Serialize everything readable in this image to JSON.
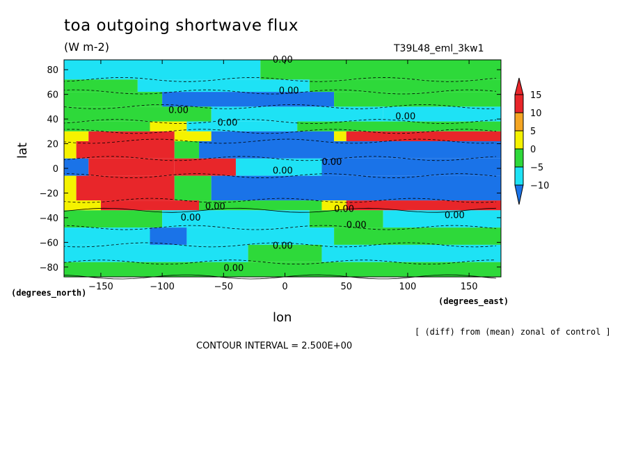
{
  "chart_data": {
    "type": "heatmap",
    "title": "toa outgoing shortwave flux",
    "units": "(W m-2)",
    "run_id": "T39L48_eml_3kw1",
    "xlabel": "lon",
    "ylabel": "lat",
    "x_units": "(degrees_east)",
    "y_units": "(degrees_north)",
    "xlim": [
      -180,
      176
    ],
    "ylim": [
      -88,
      88
    ],
    "x_ticks": [
      -150,
      -100,
      -50,
      0,
      50,
      100,
      150
    ],
    "x_tick_labels": [
      "−150",
      "−100",
      "−50",
      "0",
      "50",
      "100",
      "150"
    ],
    "y_ticks": [
      80,
      60,
      40,
      20,
      0,
      -20,
      -40,
      -60,
      -80
    ],
    "y_tick_labels": [
      "80",
      "60",
      "40",
      "20",
      "0",
      "−20",
      "−40",
      "−60",
      "−80"
    ],
    "colorbar": {
      "levels": [
        15,
        10,
        5,
        0,
        -5,
        -10
      ],
      "level_labels": [
        "15",
        "10",
        "5",
        "0",
        "−5",
        "−10"
      ],
      "colors": [
        "#e8262a",
        "#f5a623",
        "#f5f200",
        "#2ed93a",
        "#1ee2f5",
        "#1a73e8"
      ]
    },
    "contour_labels": [
      "0.00",
      "0.00",
      "0.00",
      "0.00",
      "0.00",
      "0.00",
      "0.00",
      "0.00",
      "0.00",
      "0.00",
      "0.00",
      "0.00",
      "0.00",
      "0.00"
    ],
    "contour_interval": "CONTOUR INTERVAL = 2.500E+00",
    "note": "[ (diff) from (mean) zonal of control ]",
    "bands": [
      {
        "lat_top": 88,
        "lat_bottom": 72,
        "segments": [
          {
            "x0": -180,
            "x1": -20,
            "v": -2.5
          },
          {
            "x0": -20,
            "x1": 176,
            "v": 2.5
          }
        ]
      },
      {
        "lat_top": 72,
        "lat_bottom": 62,
        "segments": [
          {
            "x0": -180,
            "x1": -120,
            "v": 2.5
          },
          {
            "x0": -120,
            "x1": 20,
            "v": -2.5
          },
          {
            "x0": 20,
            "x1": 176,
            "v": 2.5
          }
        ]
      },
      {
        "lat_top": 62,
        "lat_bottom": 50,
        "segments": [
          {
            "x0": -180,
            "x1": -100,
            "v": 2.5
          },
          {
            "x0": -100,
            "x1": 40,
            "v": -7.5
          },
          {
            "x0": 40,
            "x1": 176,
            "v": 2.5
          }
        ]
      },
      {
        "lat_top": 50,
        "lat_bottom": 38,
        "segments": [
          {
            "x0": -180,
            "x1": -60,
            "v": 2.5
          },
          {
            "x0": -60,
            "x1": 80,
            "v": -2.5
          },
          {
            "x0": 80,
            "x1": 176,
            "v": -2.5
          }
        ]
      },
      {
        "lat_top": 38,
        "lat_bottom": 30,
        "segments": [
          {
            "x0": -180,
            "x1": -110,
            "v": 2.5
          },
          {
            "x0": -110,
            "x1": -80,
            "v": 7.5
          },
          {
            "x0": -80,
            "x1": 10,
            "v": -2.5
          },
          {
            "x0": 10,
            "x1": 176,
            "v": 2.5
          }
        ]
      },
      {
        "lat_top": 30,
        "lat_bottom": 22,
        "segments": [
          {
            "x0": -180,
            "x1": -160,
            "v": 7.5
          },
          {
            "x0": -160,
            "x1": -90,
            "v": 12.5
          },
          {
            "x0": -90,
            "x1": -60,
            "v": 7.5
          },
          {
            "x0": -60,
            "x1": 40,
            "v": -7.5
          },
          {
            "x0": 40,
            "x1": 50,
            "v": 7.5
          },
          {
            "x0": 50,
            "x1": 176,
            "v": 12.5
          }
        ]
      },
      {
        "lat_top": 22,
        "lat_bottom": 8,
        "segments": [
          {
            "x0": -180,
            "x1": -170,
            "v": 7.5
          },
          {
            "x0": -170,
            "x1": -90,
            "v": 15
          },
          {
            "x0": -90,
            "x1": -70,
            "v": 2.5
          },
          {
            "x0": -70,
            "x1": 176,
            "v": -12.5
          }
        ]
      },
      {
        "lat_top": 8,
        "lat_bottom": -6,
        "segments": [
          {
            "x0": -180,
            "x1": -160,
            "v": -12.5
          },
          {
            "x0": -160,
            "x1": -90,
            "v": 15
          },
          {
            "x0": -90,
            "x1": -40,
            "v": 12.5
          },
          {
            "x0": -40,
            "x1": 30,
            "v": -2.5
          },
          {
            "x0": 30,
            "x1": 176,
            "v": -7.5
          }
        ]
      },
      {
        "lat_top": -6,
        "lat_bottom": -26,
        "segments": [
          {
            "x0": -180,
            "x1": -170,
            "v": 7.5
          },
          {
            "x0": -170,
            "x1": -90,
            "v": 15
          },
          {
            "x0": -90,
            "x1": -60,
            "v": 2.5
          },
          {
            "x0": -60,
            "x1": 176,
            "v": -12.5
          }
        ]
      },
      {
        "lat_top": -26,
        "lat_bottom": -34,
        "segments": [
          {
            "x0": -180,
            "x1": -150,
            "v": 7.5
          },
          {
            "x0": -150,
            "x1": -70,
            "v": 12.5
          },
          {
            "x0": -70,
            "x1": 30,
            "v": 2.5
          },
          {
            "x0": 30,
            "x1": 50,
            "v": 7.5
          },
          {
            "x0": 50,
            "x1": 176,
            "v": 12.5
          }
        ]
      },
      {
        "lat_top": -34,
        "lat_bottom": -48,
        "segments": [
          {
            "x0": -180,
            "x1": -100,
            "v": 2.5
          },
          {
            "x0": -100,
            "x1": 20,
            "v": -2.5
          },
          {
            "x0": 20,
            "x1": 80,
            "v": 2.5
          },
          {
            "x0": 80,
            "x1": 176,
            "v": -2.5
          }
        ]
      },
      {
        "lat_top": -48,
        "lat_bottom": -62,
        "segments": [
          {
            "x0": -180,
            "x1": -110,
            "v": -2.5
          },
          {
            "x0": -110,
            "x1": -80,
            "v": -7.5
          },
          {
            "x0": -80,
            "x1": 40,
            "v": -2.5
          },
          {
            "x0": 40,
            "x1": 176,
            "v": 2.5
          }
        ]
      },
      {
        "lat_top": -62,
        "lat_bottom": -76,
        "segments": [
          {
            "x0": -180,
            "x1": -30,
            "v": -2.5
          },
          {
            "x0": -30,
            "x1": 30,
            "v": 2.5
          },
          {
            "x0": 30,
            "x1": 176,
            "v": -2.5
          }
        ]
      },
      {
        "lat_top": -76,
        "lat_bottom": -88,
        "segments": [
          {
            "x0": -180,
            "x1": 176,
            "v": 2.5
          }
        ]
      }
    ]
  }
}
